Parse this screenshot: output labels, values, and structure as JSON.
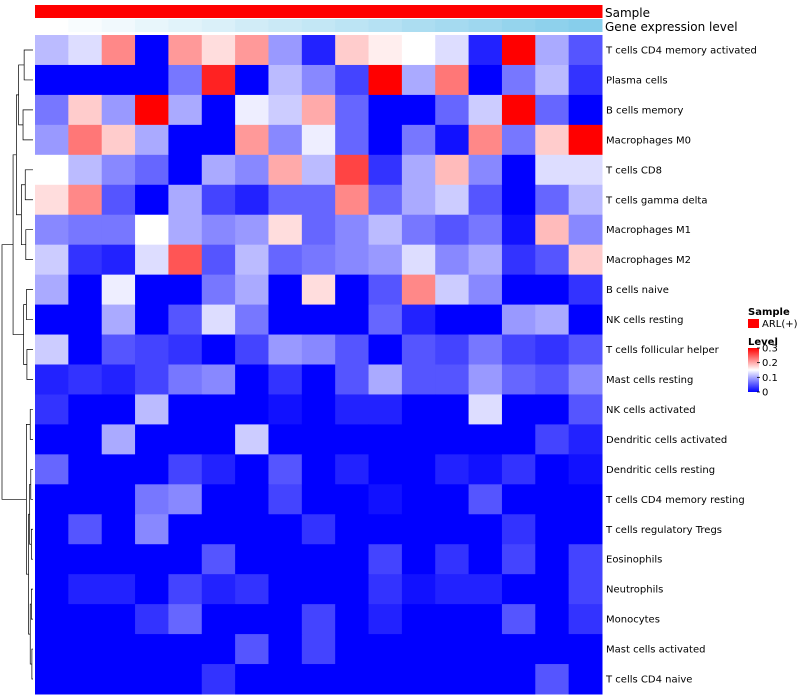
{
  "chart_data": {
    "type": "heatmap",
    "title": "",
    "n_samples": 17,
    "annotation_tracks": [
      {
        "name": "Sample",
        "legend_title": "Sample",
        "entries": [
          {
            "label": "ARL(+)",
            "color": "#ff0000"
          }
        ],
        "values": [
          "ARL(+)",
          "ARL(+)",
          "ARL(+)",
          "ARL(+)",
          "ARL(+)",
          "ARL(+)",
          "ARL(+)",
          "ARL(+)",
          "ARL(+)",
          "ARL(+)",
          "ARL(+)",
          "ARL(+)",
          "ARL(+)",
          "ARL(+)",
          "ARL(+)",
          "ARL(+)",
          "ARL(+)"
        ]
      },
      {
        "name": "Gene expression level",
        "gradient_colors": [
          "#ffffff",
          "#87ceeb"
        ],
        "values": [
          0.0,
          0.06,
          0.12,
          0.19,
          0.25,
          0.31,
          0.38,
          0.44,
          0.5,
          0.56,
          0.62,
          0.69,
          0.75,
          0.81,
          0.88,
          0.94,
          1.0
        ]
      }
    ],
    "rows": [
      "T cells CD4 memory activated",
      "Plasma cells",
      "B cells memory",
      "Macrophages M0",
      "T cells CD8",
      "T cells gamma delta",
      "Macrophages M1",
      "Macrophages M2",
      "B cells naive",
      "NK cells resting",
      "T cells follicular helper",
      "Mast cells resting",
      "NK cells activated",
      "Dendritic cells activated",
      "Dendritic cells resting",
      "T cells CD4 memory resting",
      "T cells regulatory  Tregs",
      "Eosinophils",
      "Neutrophils",
      "Monocytes",
      "Mast cells activated",
      "T cells CD4 naive"
    ],
    "values": [
      [
        0.11,
        0.13,
        0.22,
        0.0,
        0.21,
        0.17,
        0.21,
        0.09,
        0.02,
        0.18,
        0.16,
        0.15,
        0.13,
        0.02,
        0.3,
        0.1,
        0.05
      ],
      [
        0.0,
        0.0,
        0.0,
        0.0,
        0.07,
        0.28,
        0.0,
        0.11,
        0.08,
        0.04,
        0.3,
        0.1,
        0.23,
        0.0,
        0.07,
        0.11,
        0.03
      ],
      [
        0.07,
        0.18,
        0.09,
        0.3,
        0.1,
        0.0,
        0.14,
        0.12,
        0.2,
        0.06,
        0.0,
        0.0,
        0.06,
        0.12,
        0.3,
        0.06,
        0.0
      ],
      [
        0.09,
        0.23,
        0.18,
        0.1,
        0.0,
        0.0,
        0.21,
        0.08,
        0.14,
        0.06,
        0.0,
        0.07,
        0.01,
        0.22,
        0.07,
        0.18,
        0.3
      ],
      [
        0.15,
        0.11,
        0.08,
        0.06,
        0.0,
        0.1,
        0.08,
        0.2,
        0.11,
        0.26,
        0.03,
        0.1,
        0.19,
        0.08,
        0.0,
        0.13,
        0.13
      ],
      [
        0.17,
        0.22,
        0.05,
        0.0,
        0.1,
        0.04,
        0.02,
        0.06,
        0.06,
        0.22,
        0.06,
        0.1,
        0.12,
        0.05,
        0.0,
        0.06,
        0.11
      ],
      [
        0.08,
        0.07,
        0.07,
        0.15,
        0.1,
        0.08,
        0.09,
        0.17,
        0.06,
        0.08,
        0.11,
        0.07,
        0.05,
        0.07,
        0.01,
        0.19,
        0.08
      ],
      [
        0.12,
        0.03,
        0.02,
        0.13,
        0.25,
        0.05,
        0.11,
        0.06,
        0.07,
        0.08,
        0.09,
        0.13,
        0.08,
        0.1,
        0.03,
        0.05,
        0.18
      ],
      [
        0.1,
        0.0,
        0.14,
        0.0,
        0.0,
        0.07,
        0.1,
        0.0,
        0.17,
        0.0,
        0.05,
        0.22,
        0.12,
        0.08,
        0.0,
        0.0,
        0.03
      ],
      [
        0.0,
        0.0,
        0.1,
        0.0,
        0.05,
        0.13,
        0.07,
        0.0,
        0.0,
        0.0,
        0.06,
        0.02,
        0.0,
        0.0,
        0.09,
        0.1,
        0.0
      ],
      [
        0.12,
        0.0,
        0.05,
        0.04,
        0.03,
        0.0,
        0.04,
        0.09,
        0.08,
        0.05,
        0.0,
        0.05,
        0.04,
        0.07,
        0.04,
        0.03,
        0.05
      ],
      [
        0.02,
        0.03,
        0.02,
        0.04,
        0.07,
        0.08,
        0.0,
        0.03,
        0.0,
        0.05,
        0.1,
        0.05,
        0.05,
        0.09,
        0.06,
        0.05,
        0.08
      ],
      [
        0.03,
        0.0,
        0.0,
        0.11,
        0.0,
        0.0,
        0.0,
        0.01,
        0.0,
        0.02,
        0.02,
        0.0,
        0.0,
        0.13,
        0.0,
        0.0,
        0.05
      ],
      [
        0.0,
        0.0,
        0.1,
        0.0,
        0.0,
        0.0,
        0.12,
        0.0,
        0.0,
        0.0,
        0.0,
        0.0,
        0.0,
        0.0,
        0.0,
        0.04,
        0.02
      ],
      [
        0.06,
        0.0,
        0.0,
        0.0,
        0.04,
        0.02,
        0.0,
        0.05,
        0.0,
        0.02,
        0.0,
        0.0,
        0.02,
        0.01,
        0.03,
        0.0,
        0.01
      ],
      [
        0.0,
        0.0,
        0.0,
        0.07,
        0.08,
        0.0,
        0.0,
        0.04,
        0.0,
        0.0,
        0.01,
        0.0,
        0.0,
        0.05,
        0.0,
        0.0,
        0.0
      ],
      [
        0.0,
        0.05,
        0.0,
        0.08,
        0.0,
        0.0,
        0.0,
        0.0,
        0.03,
        0.0,
        0.0,
        0.0,
        0.0,
        0.0,
        0.03,
        0.0,
        0.0
      ],
      [
        0.0,
        0.0,
        0.0,
        0.0,
        0.0,
        0.05,
        0.0,
        0.0,
        0.0,
        0.0,
        0.04,
        0.0,
        0.03,
        0.0,
        0.04,
        0.0,
        0.04
      ],
      [
        0.0,
        0.02,
        0.02,
        0.0,
        0.04,
        0.02,
        0.03,
        0.0,
        0.0,
        0.0,
        0.03,
        0.01,
        0.02,
        0.02,
        0.0,
        0.0,
        0.04
      ],
      [
        0.0,
        0.0,
        0.0,
        0.03,
        0.06,
        0.0,
        0.0,
        0.0,
        0.04,
        0.0,
        0.02,
        0.0,
        0.0,
        0.0,
        0.05,
        0.0,
        0.03
      ],
      [
        0.0,
        0.0,
        0.0,
        0.0,
        0.0,
        0.0,
        0.05,
        0.0,
        0.04,
        0.0,
        0.0,
        0.0,
        0.0,
        0.0,
        0.0,
        0.0,
        0.0
      ],
      [
        0.0,
        0.0,
        0.0,
        0.0,
        0.0,
        0.03,
        0.0,
        0.0,
        0.0,
        0.0,
        0.0,
        0.0,
        0.0,
        0.0,
        0.0,
        0.05,
        0.0
      ]
    ],
    "color_scale": {
      "low_color": "#0000ff",
      "mid_color": "#ffffff",
      "high_color": "#ff0000",
      "range": [
        0,
        0.3
      ],
      "midpoint": 0.15
    },
    "legend": {
      "title": "Level",
      "ticks": [
        "0.3",
        "0.2",
        "0.1",
        "0"
      ],
      "tick_values": [
        0.3,
        0.2,
        0.1,
        0.0
      ],
      "placement": "right"
    },
    "row_dendrogram": {
      "side": "left",
      "merges": [
        [
          0,
          1
        ],
        [
          2,
          3
        ],
        [
          -1,
          -2
        ],
        [
          4,
          5
        ],
        [
          6,
          7
        ],
        [
          -4,
          -5
        ],
        [
          -3,
          -6
        ],
        [
          8,
          9
        ],
        [
          10,
          11
        ],
        [
          -8,
          -9
        ],
        [
          -7,
          -10
        ],
        [
          12,
          13
        ],
        [
          14,
          15
        ],
        [
          16,
          17
        ],
        [
          -13,
          -14
        ],
        [
          18,
          19
        ],
        [
          20,
          21
        ],
        [
          -16,
          -17
        ],
        [
          -15,
          -18
        ],
        [
          -12,
          -19
        ],
        [
          -11,
          -20
        ]
      ],
      "heights": [
        0.16,
        0.18,
        0.26,
        0.14,
        0.13,
        0.21,
        0.3,
        0.12,
        0.11,
        0.17,
        0.36,
        0.05,
        0.04,
        0.03,
        0.06,
        0.03,
        0.02,
        0.05,
        0.08,
        0.12,
        0.56
      ]
    }
  }
}
